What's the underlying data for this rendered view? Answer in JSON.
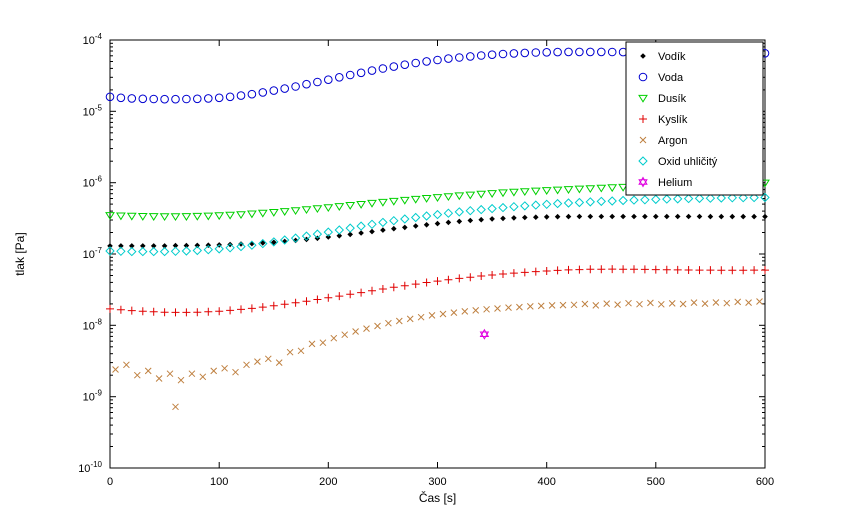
{
  "figure": {
    "background": "#ffffff",
    "frame_color": "#000000"
  },
  "chart_data": {
    "type": "scatter",
    "title": "",
    "xlabel": "Čas [s]",
    "ylabel": "tlak [Pa]",
    "x_scale": "linear",
    "y_scale": "log",
    "xlim": [
      0,
      600
    ],
    "ylim": [
      1e-10,
      0.0001
    ],
    "x_ticks": [
      0,
      100,
      200,
      300,
      400,
      500,
      600
    ],
    "y_tick_exponents": [
      -4,
      -5,
      -6,
      -7,
      -8,
      -9,
      -10
    ],
    "grid": false,
    "legend_position": "top-right",
    "x": [
      0,
      10,
      20,
      30,
      40,
      50,
      60,
      70,
      80,
      90,
      100,
      110,
      120,
      130,
      140,
      150,
      160,
      170,
      180,
      190,
      200,
      210,
      220,
      230,
      240,
      250,
      260,
      270,
      280,
      290,
      300,
      310,
      320,
      330,
      340,
      350,
      360,
      370,
      380,
      390,
      400,
      410,
      420,
      430,
      440,
      450,
      460,
      470,
      480,
      490,
      500,
      510,
      520,
      530,
      540,
      550,
      560,
      570,
      580,
      590,
      600
    ],
    "series": [
      {
        "name": "Vodík",
        "marker": "diamond-filled",
        "color": "#000000",
        "y": [
          1.3e-07,
          1.3e-07,
          1.3e-07,
          1.3e-07,
          1.3e-07,
          1.3e-07,
          1.31e-07,
          1.31e-07,
          1.32e-07,
          1.33e-07,
          1.34e-07,
          1.36e-07,
          1.38e-07,
          1.4e-07,
          1.43e-07,
          1.46e-07,
          1.5e-07,
          1.55e-07,
          1.6e-07,
          1.66e-07,
          1.73e-07,
          1.8e-07,
          1.88e-07,
          1.97e-07,
          2.06e-07,
          2.16e-07,
          2.26e-07,
          2.36e-07,
          2.47e-07,
          2.57e-07,
          2.67e-07,
          2.77e-07,
          2.86e-07,
          2.95e-07,
          3.03e-07,
          3.1e-07,
          3.16e-07,
          3.21e-07,
          3.25e-07,
          3.28e-07,
          3.31e-07,
          3.33e-07,
          3.34e-07,
          3.35e-07,
          3.36e-07,
          3.36e-07,
          3.36e-07,
          3.36e-07,
          3.36e-07,
          3.36e-07,
          3.36e-07,
          3.35e-07,
          3.35e-07,
          3.35e-07,
          3.35e-07,
          3.34e-07,
          3.34e-07,
          3.34e-07,
          3.34e-07,
          3.34e-07,
          3.34e-07
        ]
      },
      {
        "name": "Voda",
        "marker": "circle-open",
        "color": "#0000D0",
        "y": [
          1.6e-05,
          1.55e-05,
          1.52e-05,
          1.5e-05,
          1.49e-05,
          1.48e-05,
          1.48e-05,
          1.49e-05,
          1.5e-05,
          1.52e-05,
          1.55e-05,
          1.6e-05,
          1.66e-05,
          1.74e-05,
          1.84e-05,
          1.95e-05,
          2.08e-05,
          2.23e-05,
          2.4e-05,
          2.58e-05,
          2.78e-05,
          3e-05,
          3.23e-05,
          3.47e-05,
          3.72e-05,
          3.98e-05,
          4.24e-05,
          4.5e-05,
          4.76e-05,
          5.01e-05,
          5.25e-05,
          5.48e-05,
          5.69e-05,
          5.89e-05,
          6.07e-05,
          6.23e-05,
          6.37e-05,
          6.49e-05,
          6.59e-05,
          6.67e-05,
          6.73e-05,
          6.77e-05,
          6.8e-05,
          6.81e-05,
          6.81e-05,
          6.8e-05,
          6.78e-05,
          6.76e-05,
          6.73e-05,
          6.7e-05,
          6.67e-05,
          6.64e-05,
          6.61e-05,
          6.58e-05,
          6.56e-05,
          6.54e-05,
          6.52e-05,
          6.51e-05,
          6.5e-05,
          6.5e-05,
          6.5e-05
        ]
      },
      {
        "name": "Dusík",
        "marker": "triangle-down-open",
        "color": "#00D000",
        "y": [
          3.5e-07,
          3.45e-07,
          3.42e-07,
          3.4e-07,
          3.39e-07,
          3.38e-07,
          3.38e-07,
          3.39e-07,
          3.41e-07,
          3.44e-07,
          3.48e-07,
          3.53e-07,
          3.6e-07,
          3.68e-07,
          3.77e-07,
          3.87e-07,
          3.98e-07,
          4.1e-07,
          4.23e-07,
          4.37e-07,
          4.52e-07,
          4.68e-07,
          4.84e-07,
          5.01e-07,
          5.18e-07,
          5.36e-07,
          5.54e-07,
          5.72e-07,
          5.9e-07,
          6.08e-07,
          6.26e-07,
          6.44e-07,
          6.61e-07,
          6.78e-07,
          6.95e-07,
          7.11e-07,
          7.27e-07,
          7.42e-07,
          7.57e-07,
          7.71e-07,
          7.85e-07,
          7.98e-07,
          8.11e-07,
          8.23e-07,
          8.35e-07,
          8.47e-07,
          8.58e-07,
          8.69e-07,
          8.8e-07,
          8.9e-07,
          9e-07,
          9.1e-07,
          9.2e-07,
          9.3e-07,
          9.4e-07,
          9.5e-07,
          9.6e-07,
          9.7e-07,
          9.8e-07,
          9.9e-07,
          1e-06
        ]
      },
      {
        "name": "Kyslík",
        "marker": "plus",
        "color": "#E00000",
        "y": [
          1.7e-08,
          1.65e-08,
          1.61e-08,
          1.58e-08,
          1.55e-08,
          1.53e-08,
          1.52e-08,
          1.52e-08,
          1.53e-08,
          1.55e-08,
          1.58e-08,
          1.62e-08,
          1.67e-08,
          1.73e-08,
          1.8e-08,
          1.88e-08,
          1.97e-08,
          2.07e-08,
          2.18e-08,
          2.3e-08,
          2.43e-08,
          2.57e-08,
          2.72e-08,
          2.88e-08,
          3.05e-08,
          3.23e-08,
          3.41e-08,
          3.6e-08,
          3.79e-08,
          3.98e-08,
          4.17e-08,
          4.36e-08,
          4.55e-08,
          4.73e-08,
          4.91e-08,
          5.08e-08,
          5.24e-08,
          5.39e-08,
          5.53e-08,
          5.66e-08,
          5.78e-08,
          5.89e-08,
          5.98e-08,
          6.05e-08,
          6.1e-08,
          6.13e-08,
          6.14e-08,
          6.13e-08,
          6.11e-08,
          6.08e-08,
          6.05e-08,
          6.02e-08,
          5.99e-08,
          5.97e-08,
          5.95e-08,
          5.94e-08,
          5.93e-08,
          5.93e-08,
          5.93e-08,
          5.94e-08,
          5.95e-08
        ]
      },
      {
        "name": "Argon",
        "marker": "x",
        "color": "#BF8040",
        "x": [
          5,
          15,
          25,
          35,
          45,
          55,
          60,
          65,
          75,
          85,
          95,
          105,
          115,
          125,
          135,
          145,
          155,
          165,
          175,
          185,
          195,
          205,
          215,
          225,
          235,
          245,
          255,
          265,
          275,
          285,
          295,
          305,
          315,
          325,
          335,
          345,
          355,
          365,
          375,
          385,
          395,
          405,
          415,
          425,
          435,
          445,
          455,
          465,
          475,
          485,
          495,
          505,
          515,
          525,
          535,
          545,
          555,
          565,
          575,
          585,
          595
        ],
        "y": [
          2.4e-09,
          2.8e-09,
          2e-09,
          2.3e-09,
          1.8e-09,
          2.1e-09,
          7.2e-10,
          1.7e-09,
          2.1e-09,
          1.9e-09,
          2.3e-09,
          2.5e-09,
          2.2e-09,
          2.8e-09,
          3.1e-09,
          3.4e-09,
          3e-09,
          4.2e-09,
          4.4e-09,
          5.5e-09,
          5.7e-09,
          6.6e-09,
          7.4e-09,
          8.2e-09,
          9e-09,
          9.8e-09,
          1.07e-08,
          1.15e-08,
          1.23e-08,
          1.3e-08,
          1.38e-08,
          1.44e-08,
          1.51e-08,
          1.57e-08,
          1.62e-08,
          1.68e-08,
          1.72e-08,
          1.77e-08,
          1.8e-08,
          1.84e-08,
          1.87e-08,
          1.9e-08,
          1.92e-08,
          1.94e-08,
          1.99e-08,
          1.9e-08,
          2.02e-08,
          1.95e-08,
          2.04e-08,
          1.98e-08,
          2.06e-08,
          1.97e-08,
          2.03e-08,
          1.99e-08,
          2.08e-08,
          2.02e-08,
          2.09e-08,
          2.04e-08,
          2.13e-08,
          2.08e-08,
          2.16e-08
        ]
      },
      {
        "name": "Oxid uhličitý",
        "marker": "diamond-open",
        "color": "#00CCCC",
        "y": [
          1.1e-07,
          1.09e-07,
          1.08e-07,
          1.08e-07,
          1.08e-07,
          1.08e-07,
          1.09e-07,
          1.1e-07,
          1.12e-07,
          1.15e-07,
          1.18e-07,
          1.22e-07,
          1.27e-07,
          1.33e-07,
          1.4e-07,
          1.48e-07,
          1.57e-07,
          1.67e-07,
          1.78e-07,
          1.9e-07,
          2.03e-07,
          2.17e-07,
          2.31e-07,
          2.46e-07,
          2.61e-07,
          2.77e-07,
          2.93e-07,
          3.09e-07,
          3.25e-07,
          3.41e-07,
          3.57e-07,
          3.73e-07,
          3.89e-07,
          4.04e-07,
          4.19e-07,
          4.33e-07,
          4.47e-07,
          4.6e-07,
          4.73e-07,
          4.85e-07,
          4.97e-07,
          5.08e-07,
          5.18e-07,
          5.28e-07,
          5.37e-07,
          5.46e-07,
          5.54e-07,
          5.62e-07,
          5.69e-07,
          5.76e-07,
          5.82e-07,
          5.88e-07,
          5.93e-07,
          5.98e-07,
          6.02e-07,
          6.06e-07,
          6.1e-07,
          6.13e-07,
          6.16e-07,
          6.18e-07,
          6.2e-07
        ]
      },
      {
        "name": "Helium",
        "marker": "hexagram",
        "color": "#E000E0",
        "x": [
          343
        ],
        "y": [
          7.5e-09
        ]
      }
    ]
  }
}
